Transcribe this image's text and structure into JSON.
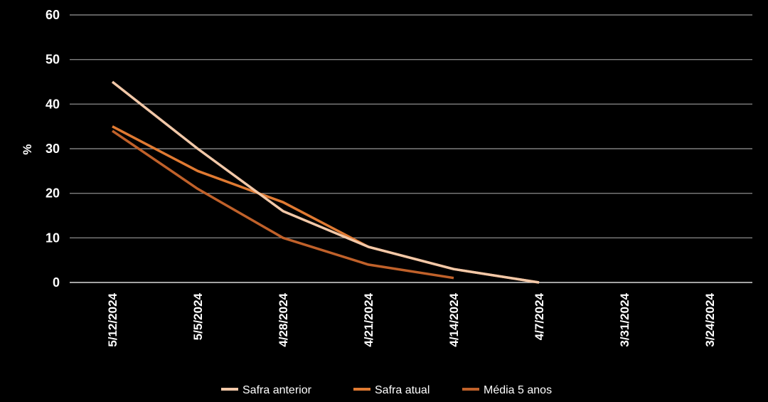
{
  "chart_data": {
    "type": "line",
    "ylabel": "%",
    "xlabel": "",
    "ylim": [
      0,
      60
    ],
    "yticks": [
      "0",
      "10",
      "20",
      "30",
      "40",
      "50",
      "60"
    ],
    "categories": [
      "5/12/2024",
      "5/5/2024",
      "4/28/2024",
      "4/21/2024",
      "4/14/2024",
      "4/7/2024",
      "3/31/2024",
      "3/24/2024"
    ],
    "grid": true,
    "legend_position": "bottom",
    "series": [
      {
        "name": "Safra anterior",
        "color": "#f2c8a8",
        "values": [
          45,
          30,
          16,
          8,
          3,
          0,
          null,
          null
        ]
      },
      {
        "name": "Safra atual",
        "color": "#e07a32",
        "values": [
          35,
          25,
          18,
          8,
          3,
          0,
          null,
          null
        ]
      },
      {
        "name": "Média 5 anos",
        "color": "#c0612a",
        "values": [
          34,
          21,
          10,
          4,
          1,
          null,
          null,
          null
        ]
      }
    ]
  }
}
